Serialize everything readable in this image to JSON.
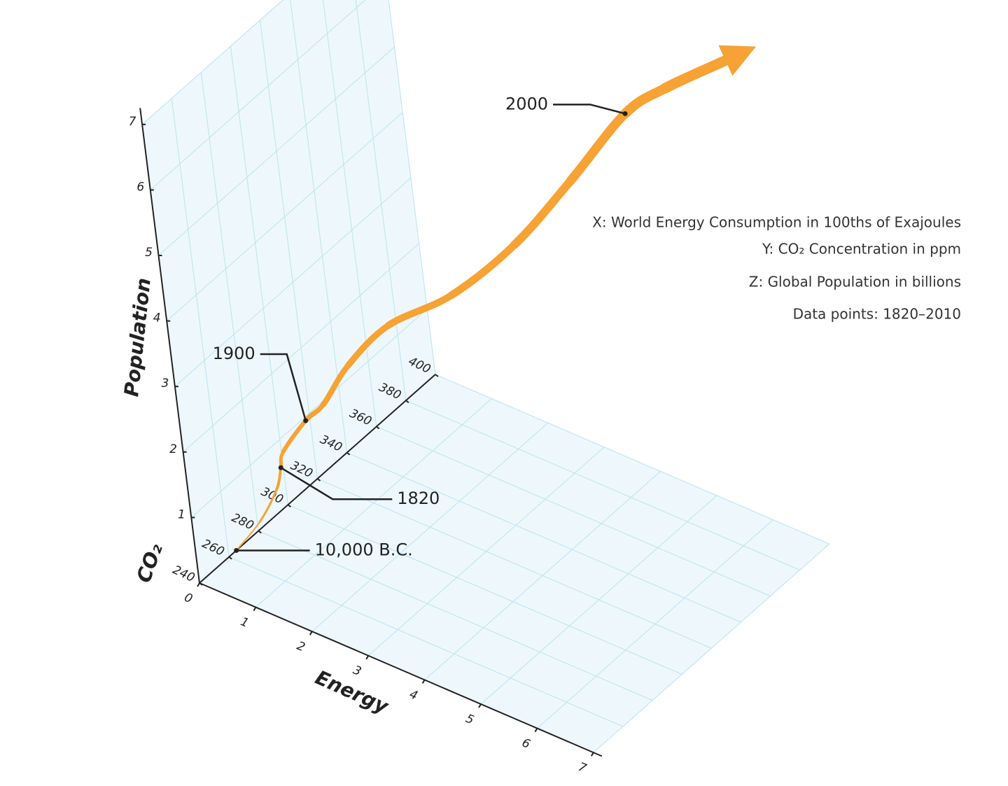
{
  "chart_data": {
    "type": "line3d",
    "x_label": "Energy",
    "y_label": "CO₂",
    "z_label": "Population",
    "xlim": [
      0,
      7
    ],
    "xticks": [
      0,
      1,
      2,
      3,
      4,
      5,
      6,
      7
    ],
    "ylim": [
      240,
      400
    ],
    "yticks": [
      240,
      260,
      280,
      300,
      320,
      340,
      360,
      380,
      400
    ],
    "zlim": [
      0,
      7
    ],
    "zticks": [
      0,
      1,
      2,
      3,
      4,
      5,
      6,
      7
    ],
    "grid": true,
    "series": [
      {
        "color": "#f7a234",
        "x": [
          0,
          0.05,
          0.1,
          0.2,
          0.25,
          0.5,
          0.7,
          1.0,
          1.5,
          2.2,
          2.9,
          3.6,
          4.2,
          4.6,
          5.3
        ],
        "y": [
          265,
          280,
          291,
          292,
          293,
          301,
          306.5,
          314.7,
          326.3,
          344.3,
          363.9,
          380.3,
          399.2,
          412.5,
          448.5
        ],
        "z": [
          0,
          0.16,
          0.45,
          0.8,
          1.04,
          1.45,
          1.66,
          2.2,
          2.77,
          3.13,
          3.77,
          4.68,
          5.55,
          5.82,
          6.0
        ]
      }
    ],
    "annotations": [
      {
        "text": "10,000 B.C.",
        "x": 0,
        "y": 265,
        "z": 0
      },
      {
        "text": "1820",
        "x": 0.2,
        "y": 292,
        "z": 0.8
      },
      {
        "text": "1900",
        "x": 0.5,
        "y": 301,
        "z": 1.45
      },
      {
        "text": "2000",
        "x": 4.2,
        "y": 399.2,
        "z": 5.55
      }
    ],
    "notes": [
      "X: World Energy Consumption in 100ths of Exajoules",
      "Y: CO₂ Concentration in ppm",
      "Z: Global Population in billions",
      "Data points: 1820–2010"
    ]
  }
}
